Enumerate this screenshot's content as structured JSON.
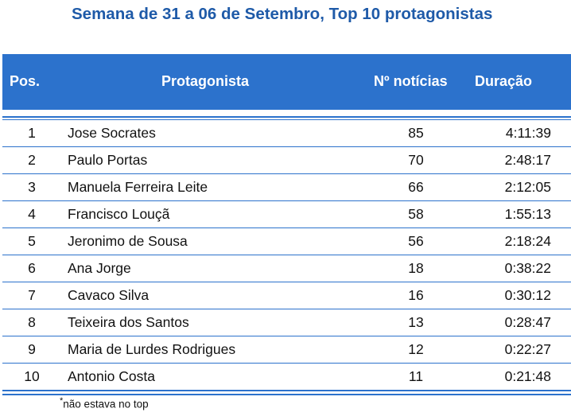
{
  "title": "Semana de 31 a 06 de Setembro, Top 10 protagonistas",
  "headers": {
    "pos": "Pos.",
    "name": "Protagonista",
    "count": "Nº notícias",
    "duration": "Duração"
  },
  "rows": [
    {
      "pos": "1",
      "name": "Jose Socrates",
      "count": "85",
      "duration": "4:11:39"
    },
    {
      "pos": "2",
      "name": "Paulo Portas",
      "count": "70",
      "duration": "2:48:17"
    },
    {
      "pos": "3",
      "name": "Manuela Ferreira Leite",
      "count": "66",
      "duration": "2:12:05"
    },
    {
      "pos": "4",
      "name": "Francisco Louçã",
      "count": "58",
      "duration": "1:55:13"
    },
    {
      "pos": "5",
      "name": "Jeronimo de Sousa",
      "count": "56",
      "duration": "2:18:24"
    },
    {
      "pos": "6",
      "name": "Ana Jorge",
      "count": "18",
      "duration": "0:38:22"
    },
    {
      "pos": "7",
      "name": "Cavaco Silva",
      "count": "16",
      "duration": "0:30:12"
    },
    {
      "pos": "8",
      "name": "Teixeira dos Santos",
      "count": "13",
      "duration": "0:28:47"
    },
    {
      "pos": "9",
      "name": "Maria de Lurdes Rodrigues",
      "count": "12",
      "duration": "0:22:27"
    },
    {
      "pos": "10",
      "name": "Antonio Costa",
      "count": "11",
      "duration": "0:21:48"
    }
  ],
  "footnote": {
    "mark": "*",
    "text": "não estava no top"
  },
  "colors": {
    "accent": "#2c72cc",
    "title": "#1e5aa8"
  }
}
